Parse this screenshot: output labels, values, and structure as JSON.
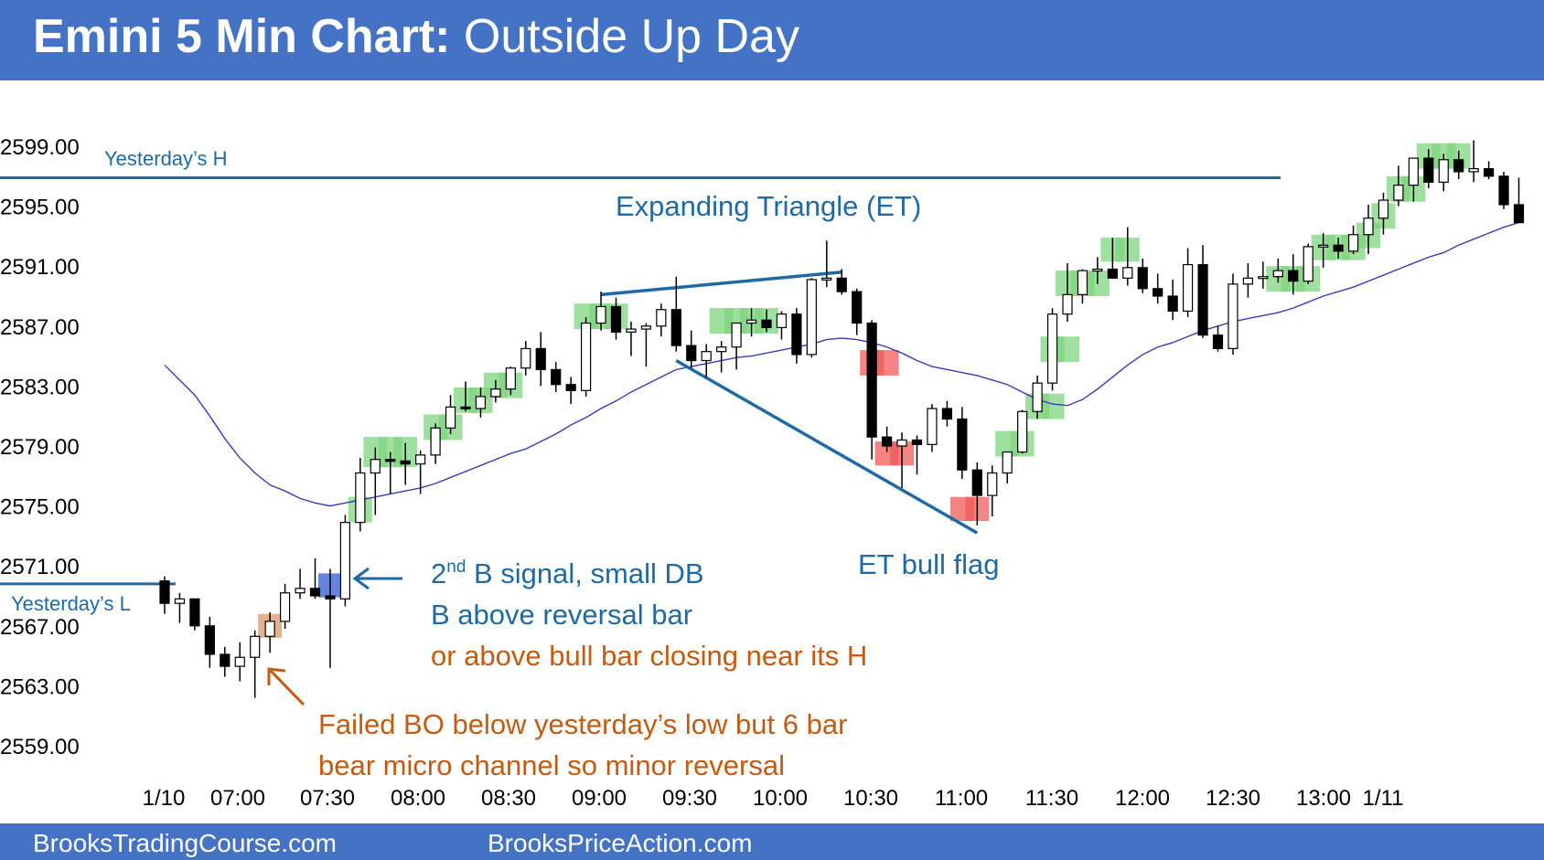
{
  "header": {
    "title_bold": "Emini 5 Min Chart:",
    "title_rest": " Outside Up Day"
  },
  "footer": {
    "left": "BrooksTradingCourse.com",
    "right": "BrooksPriceAction.com"
  },
  "colors": {
    "header": "#4472c4",
    "ema": "#3b3bb5",
    "level_line": "#1f6aa5",
    "blue_text": "#1f6aa5",
    "orange_text": "#c55a11",
    "green_box": "#7fd47f",
    "red_box": "#f05a5a",
    "blue_box": "#4a6fd8",
    "orange_box": "#d99a6c"
  },
  "chart_data": {
    "type": "candlestick",
    "title": "Emini 5 Min Chart: Outside Up Day",
    "y_ticks": [
      "2599.00",
      "2595.00",
      "2591.00",
      "2587.00",
      "2583.00",
      "2579.00",
      "2575.00",
      "2571.00",
      "2567.00",
      "2563.00",
      "2559.00"
    ],
    "ylim": [
      2557,
      2601
    ],
    "x_ticks": [
      "1/10",
      "07:00",
      "07:30",
      "08:00",
      "08:30",
      "09:00",
      "09:30",
      "10:00",
      "10:30",
      "11:00",
      "11:30",
      "12:00",
      "12:30",
      "13:00",
      "1/11"
    ],
    "bars_per_30min": 6,
    "candles": [
      [
        2570,
        2570.3,
        2567.8,
        2568.5
      ],
      [
        2568.5,
        2569.2,
        2567.2,
        2568.8
      ],
      [
        2568.8,
        2568.8,
        2566.7,
        2567
      ],
      [
        2567,
        2567.6,
        2564.2,
        2565.1
      ],
      [
        2565.1,
        2565.6,
        2563.6,
        2564.3
      ],
      [
        2564.3,
        2565.9,
        2563.3,
        2564.9
      ],
      [
        2564.9,
        2566.7,
        2562.2,
        2566.3
      ],
      [
        2566.3,
        2567.9,
        2565.2,
        2567.3
      ],
      [
        2567.3,
        2569.8,
        2566.8,
        2569.2
      ],
      [
        2569.2,
        2570.8,
        2568.8,
        2569.5
      ],
      [
        2569.5,
        2571.5,
        2568.8,
        2569
      ],
      [
        2569,
        2570.8,
        2564.2,
        2568.8
      ],
      [
        2568.8,
        2574.4,
        2568.3,
        2573.9
      ],
      [
        2573.9,
        2578.2,
        2573.3,
        2577.2
      ],
      [
        2577.2,
        2578.9,
        2574.4,
        2578.1
      ],
      [
        2578.1,
        2578.6,
        2575.8,
        2578
      ],
      [
        2578,
        2579.2,
        2576.4,
        2577.8
      ],
      [
        2577.8,
        2578.7,
        2575.8,
        2578.4
      ],
      [
        2578.4,
        2580.5,
        2577.8,
        2580.2
      ],
      [
        2580.2,
        2582.4,
        2579.8,
        2581.6
      ],
      [
        2581.6,
        2583.3,
        2581.3,
        2581.5
      ],
      [
        2581.5,
        2582.9,
        2580.9,
        2582.3
      ],
      [
        2582.3,
        2583.4,
        2581.9,
        2582.8
      ],
      [
        2582.8,
        2584.3,
        2582.4,
        2584.2
      ],
      [
        2584.2,
        2586,
        2583.7,
        2585.5
      ],
      [
        2585.5,
        2586.6,
        2583,
        2584.1
      ],
      [
        2584.1,
        2584.6,
        2582.6,
        2583.1
      ],
      [
        2583.1,
        2583.6,
        2581.8,
        2582.7
      ],
      [
        2582.7,
        2587.6,
        2582.3,
        2587.2
      ],
      [
        2587.2,
        2589.3,
        2586.7,
        2588.3
      ],
      [
        2588.3,
        2588.9,
        2586.1,
        2586.6
      ],
      [
        2586.6,
        2587.3,
        2585,
        2586.8
      ],
      [
        2586.8,
        2587.2,
        2584.3,
        2587
      ],
      [
        2587,
        2588.5,
        2586.3,
        2588.1
      ],
      [
        2588.1,
        2590.3,
        2585.3,
        2585.7
      ],
      [
        2585.7,
        2586.7,
        2584.2,
        2584.7
      ],
      [
        2584.7,
        2585.8,
        2583.6,
        2585.3
      ],
      [
        2585.3,
        2586,
        2583.9,
        2585.6
      ],
      [
        2585.6,
        2587.2,
        2584.1,
        2587.2
      ],
      [
        2587.2,
        2588.2,
        2586.3,
        2587.4
      ],
      [
        2587.4,
        2588.1,
        2586.6,
        2586.9
      ],
      [
        2586.9,
        2588,
        2586.1,
        2587.8
      ],
      [
        2587.8,
        2588.2,
        2584.5,
        2585.1
      ],
      [
        2585.1,
        2590.2,
        2584.9,
        2590.1
      ],
      [
        2590.1,
        2592.7,
        2589.6,
        2590.2
      ],
      [
        2590.2,
        2590.8,
        2589.1,
        2589.3
      ],
      [
        2589.3,
        2589.5,
        2586.4,
        2587.2
      ],
      [
        2587.2,
        2587.4,
        2578.1,
        2579.6
      ],
      [
        2579.6,
        2580.3,
        2578.6,
        2579
      ],
      [
        2579,
        2579.9,
        2576.2,
        2579.4
      ],
      [
        2579.4,
        2579.7,
        2577.1,
        2579.1
      ],
      [
        2579.1,
        2581.8,
        2578.6,
        2581.5
      ],
      [
        2581.5,
        2582,
        2580.3,
        2580.8
      ],
      [
        2580.8,
        2581.6,
        2576.8,
        2577.4
      ],
      [
        2577.4,
        2577.9,
        2573.7,
        2575.7
      ],
      [
        2575.7,
        2577.7,
        2574.3,
        2577.2
      ],
      [
        2577.2,
        2578.4,
        2576.5,
        2578.6
      ],
      [
        2578.6,
        2581.4,
        2578.5,
        2581.3
      ],
      [
        2581.3,
        2583.7,
        2580.8,
        2583.2
      ],
      [
        2583.2,
        2588.2,
        2582.7,
        2587.8
      ],
      [
        2587.8,
        2591.2,
        2587.3,
        2589.1
      ],
      [
        2589.1,
        2590.8,
        2588.5,
        2590.7
      ],
      [
        2590.7,
        2591.6,
        2589.8,
        2590.8
      ],
      [
        2590.8,
        2592.9,
        2590.3,
        2590.2
      ],
      [
        2590.2,
        2593.6,
        2589.7,
        2590.9
      ],
      [
        2590.9,
        2591.5,
        2589.2,
        2589.5
      ],
      [
        2589.5,
        2590.5,
        2588.5,
        2589
      ],
      [
        2589,
        2590.1,
        2587.4,
        2588
      ],
      [
        2588,
        2592.2,
        2587.6,
        2591.1
      ],
      [
        2591.1,
        2592.4,
        2586.2,
        2586.4
      ],
      [
        2586.4,
        2587,
        2585.3,
        2585.5
      ],
      [
        2585.5,
        2590.5,
        2585.1,
        2589.8
      ],
      [
        2589.8,
        2591.2,
        2588.9,
        2590.2
      ],
      [
        2590.2,
        2591.3,
        2589.5,
        2590.3
      ],
      [
        2590.3,
        2591.5,
        2589.9,
        2590.7
      ],
      [
        2590.7,
        2591.8,
        2589.1,
        2590
      ],
      [
        2590,
        2592.5,
        2589.8,
        2592.3
      ],
      [
        2592.3,
        2593.2,
        2590.9,
        2592.4
      ],
      [
        2592.4,
        2592.9,
        2591.5,
        2592
      ],
      [
        2592,
        2593.7,
        2591.8,
        2593.1
      ],
      [
        2593.1,
        2595.1,
        2591.8,
        2594.2
      ],
      [
        2594.2,
        2595.9,
        2593.1,
        2595.4
      ],
      [
        2595.4,
        2597.7,
        2595,
        2596.4
      ],
      [
        2596.4,
        2598.2,
        2595.3,
        2598.2
      ],
      [
        2598.2,
        2598.8,
        2596.2,
        2596.6
      ],
      [
        2596.6,
        2598.5,
        2596,
        2598.1
      ],
      [
        2598.1,
        2598.7,
        2596.8,
        2597.3
      ],
      [
        2597.3,
        2599.4,
        2596.6,
        2597.5
      ],
      [
        2597.5,
        2598,
        2596.8,
        2597
      ],
      [
        2597,
        2597.3,
        2594.8,
        2595.1
      ],
      [
        2595.1,
        2596.9,
        2593.9,
        2593.9
      ]
    ],
    "ema": [
      2584.4,
      2583.4,
      2582.4,
      2581,
      2579.5,
      2578.2,
      2577.2,
      2576.4,
      2576,
      2575.5,
      2575.2,
      2575,
      2575.2,
      2575.4,
      2575.6,
      2575.8,
      2576,
      2576.2,
      2576.5,
      2576.9,
      2577.3,
      2577.7,
      2578.1,
      2578.5,
      2578.8,
      2579.3,
      2579.8,
      2580.4,
      2580.9,
      2581.5,
      2582,
      2582.6,
      2583.1,
      2583.6,
      2584.1,
      2584.3,
      2584.5,
      2584.7,
      2584.9,
      2585,
      2585.2,
      2585.4,
      2585.6,
      2585.8,
      2586.1,
      2586.2,
      2586.1,
      2585.9,
      2585.6,
      2585.2,
      2584.7,
      2584.3,
      2584.1,
      2583.9,
      2583.7,
      2583.4,
      2583.1,
      2582.6,
      2582.1,
      2581.8,
      2581.7,
      2582.1,
      2582.8,
      2583.6,
      2584.4,
      2585.1,
      2585.6,
      2585.9,
      2586.3,
      2586.7,
      2587,
      2587.3,
      2587.5,
      2587.7,
      2587.9,
      2588.2,
      2588.6,
      2589,
      2589.3,
      2589.6,
      2590,
      2590.4,
      2590.8,
      2591.2,
      2591.6,
      2591.9,
      2592.4,
      2592.8,
      2593.2,
      2593.6,
      2593.9
    ],
    "levels": [
      {
        "label": "Yesterday's H",
        "value": 2596.9
      },
      {
        "label": "Yesterday's L",
        "value": 2569.8
      }
    ],
    "boxes": [
      {
        "bar": 7,
        "lo": 2566.2,
        "hi": 2567.8,
        "color": "orange"
      },
      {
        "bar": 11,
        "lo": 2568.9,
        "hi": 2570.5,
        "color": "blue"
      },
      {
        "bar": 13,
        "lo": 2573.9,
        "hi": 2575.6,
        "color": "green"
      },
      {
        "bar": 14,
        "lo": 2577.6,
        "hi": 2579.6,
        "color": "green"
      },
      {
        "bar": 15,
        "lo": 2577.6,
        "hi": 2579.6,
        "color": "green"
      },
      {
        "bar": 16,
        "lo": 2577.6,
        "hi": 2579.6,
        "color": "green"
      },
      {
        "bar": 18,
        "lo": 2579.4,
        "hi": 2581.1,
        "color": "green"
      },
      {
        "bar": 19,
        "lo": 2579.4,
        "hi": 2581.1,
        "color": "green"
      },
      {
        "bar": 20,
        "lo": 2581.2,
        "hi": 2582.9,
        "color": "green"
      },
      {
        "bar": 21,
        "lo": 2581.2,
        "hi": 2582.9,
        "color": "green"
      },
      {
        "bar": 22,
        "lo": 2582.2,
        "hi": 2583.9,
        "color": "green"
      },
      {
        "bar": 23,
        "lo": 2582.2,
        "hi": 2583.9,
        "color": "green"
      },
      {
        "bar": 28,
        "lo": 2586.8,
        "hi": 2588.5,
        "color": "green"
      },
      {
        "bar": 29,
        "lo": 2586.8,
        "hi": 2588.5,
        "color": "green"
      },
      {
        "bar": 30,
        "lo": 2586.8,
        "hi": 2588.5,
        "color": "green"
      },
      {
        "bar": 37,
        "lo": 2586.5,
        "hi": 2588.2,
        "color": "green"
      },
      {
        "bar": 38,
        "lo": 2586.5,
        "hi": 2588.2,
        "color": "green"
      },
      {
        "bar": 39,
        "lo": 2586.5,
        "hi": 2588.2,
        "color": "green"
      },
      {
        "bar": 40,
        "lo": 2586.5,
        "hi": 2588.2,
        "color": "green"
      },
      {
        "bar": 47,
        "lo": 2583.7,
        "hi": 2585.4,
        "color": "red"
      },
      {
        "bar": 48,
        "lo": 2583.7,
        "hi": 2585.4,
        "color": "red"
      },
      {
        "bar": 48,
        "lo": 2577.7,
        "hi": 2579.3,
        "color": "red"
      },
      {
        "bar": 49,
        "lo": 2577.7,
        "hi": 2579.3,
        "color": "red"
      },
      {
        "bar": 53,
        "lo": 2574,
        "hi": 2575.6,
        "color": "red"
      },
      {
        "bar": 54,
        "lo": 2574,
        "hi": 2575.6,
        "color": "red"
      },
      {
        "bar": 56,
        "lo": 2578.3,
        "hi": 2580,
        "color": "green"
      },
      {
        "bar": 57,
        "lo": 2578.3,
        "hi": 2580,
        "color": "green"
      },
      {
        "bar": 58,
        "lo": 2580.8,
        "hi": 2582.5,
        "color": "green"
      },
      {
        "bar": 59,
        "lo": 2580.8,
        "hi": 2582.5,
        "color": "green"
      },
      {
        "bar": 59,
        "lo": 2584.6,
        "hi": 2586.3,
        "color": "green"
      },
      {
        "bar": 60,
        "lo": 2584.6,
        "hi": 2586.3,
        "color": "green"
      },
      {
        "bar": 60,
        "lo": 2589,
        "hi": 2590.7,
        "color": "green"
      },
      {
        "bar": 61,
        "lo": 2589,
        "hi": 2590.7,
        "color": "green"
      },
      {
        "bar": 62,
        "lo": 2589,
        "hi": 2590.7,
        "color": "green"
      },
      {
        "bar": 63,
        "lo": 2591.3,
        "hi": 2592.9,
        "color": "green"
      },
      {
        "bar": 64,
        "lo": 2591.3,
        "hi": 2592.9,
        "color": "green"
      },
      {
        "bar": 74,
        "lo": 2589.3,
        "hi": 2591,
        "color": "green"
      },
      {
        "bar": 75,
        "lo": 2589.3,
        "hi": 2591,
        "color": "green"
      },
      {
        "bar": 76,
        "lo": 2589.3,
        "hi": 2591,
        "color": "green"
      },
      {
        "bar": 77,
        "lo": 2591.4,
        "hi": 2593.1,
        "color": "green"
      },
      {
        "bar": 78,
        "lo": 2591.4,
        "hi": 2593.1,
        "color": "green"
      },
      {
        "bar": 79,
        "lo": 2591.4,
        "hi": 2593.1,
        "color": "green"
      },
      {
        "bar": 80,
        "lo": 2592.2,
        "hi": 2593.9,
        "color": "green"
      },
      {
        "bar": 81,
        "lo": 2593.5,
        "hi": 2595.2,
        "color": "green"
      },
      {
        "bar": 82,
        "lo": 2595.3,
        "hi": 2597,
        "color": "green"
      },
      {
        "bar": 83,
        "lo": 2595.3,
        "hi": 2597,
        "color": "green"
      },
      {
        "bar": 84,
        "lo": 2597.5,
        "hi": 2599.2,
        "color": "green"
      },
      {
        "bar": 85,
        "lo": 2597.5,
        "hi": 2599.2,
        "color": "green"
      },
      {
        "bar": 86,
        "lo": 2597.5,
        "hi": 2599.2,
        "color": "green"
      }
    ],
    "trendlines": [
      {
        "from_bar": 29,
        "from_price": 2589.1,
        "to_bar": 45,
        "to_price": 2590.6
      },
      {
        "from_bar": 34,
        "from_price": 2584.7,
        "to_bar": 54,
        "to_price": 2573.2
      }
    ],
    "annotations": {
      "yh_label": "Yesterday’s H",
      "yl_label": "Yesterday’s L",
      "et_label": "Expanding Triangle (ET)",
      "et_bull_flag": "ET bull flag",
      "signal_line1_pre": "2",
      "signal_line1_sup": "nd",
      "signal_line1_post": " B signal, small DB",
      "signal_line2": "B above reversal bar",
      "signal_line3": "or above bull bar closing near its H",
      "failed_line1": "Failed BO below yesterday’s low but 6 bar",
      "failed_line2": "bear micro channel so minor reversal"
    }
  }
}
